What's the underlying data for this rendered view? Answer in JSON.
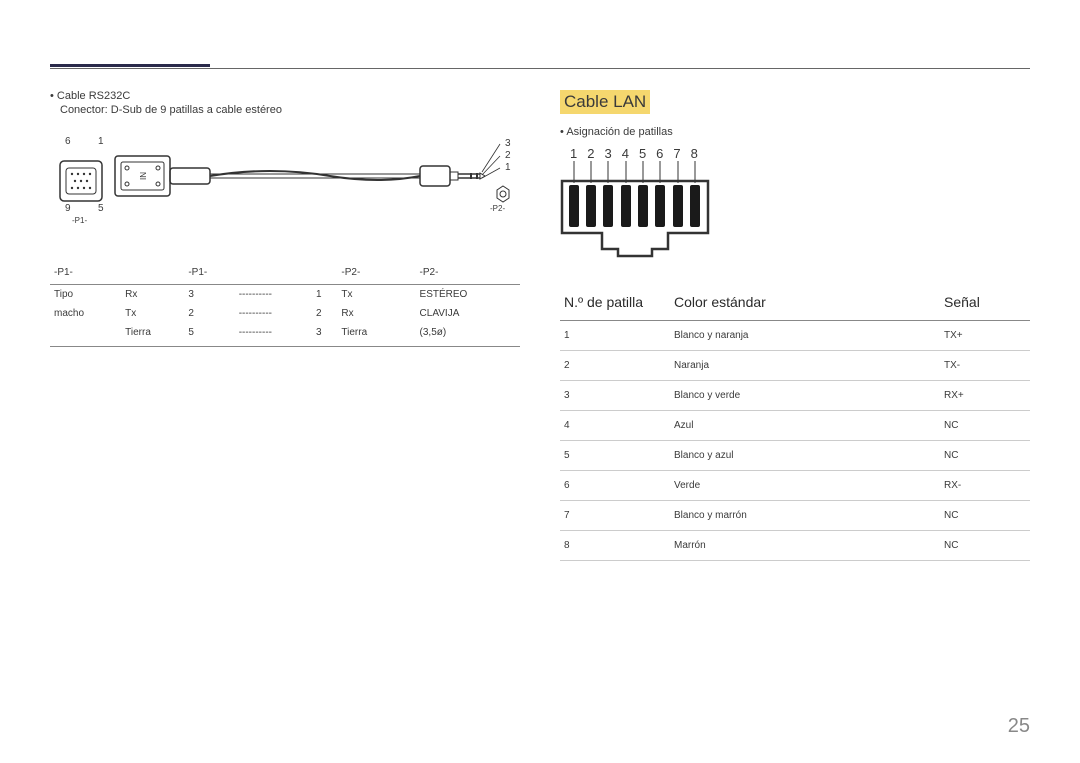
{
  "page_number": "25",
  "left": {
    "title": "Cable RS232C",
    "subtitle": "Conector: D-Sub de 9 patillas a cable estéreo",
    "diagram": {
      "p1_label": "-P1-",
      "p2_label": "-P2-",
      "dsub_pins_top": [
        "6",
        "1"
      ],
      "dsub_pins_bottom": [
        "9",
        "5"
      ],
      "jack_pins": [
        "3",
        "2",
        "1"
      ],
      "in_label": "IN"
    },
    "table": {
      "headers": [
        "-P1-",
        "",
        "-P1-",
        "",
        "",
        "-P2-",
        "",
        "-P2-"
      ],
      "rows": [
        [
          "Tipo",
          "Rx",
          "3",
          "----------",
          "1",
          "Tx",
          "ESTÉREO"
        ],
        [
          "macho",
          "Tx",
          "2",
          "----------",
          "2",
          "Rx",
          "CLAVIJA"
        ],
        [
          "",
          "Tierra",
          "5",
          "----------",
          "3",
          "Tierra",
          "(3,5ø)"
        ]
      ]
    }
  },
  "right": {
    "section_title": "Cable LAN",
    "bullet": "Asignación de patillas",
    "pin_numbers": [
      "1",
      "2",
      "3",
      "4",
      "5",
      "6",
      "7",
      "8"
    ],
    "table": {
      "headers": [
        "N.º de patilla",
        "Color estándar",
        "Señal"
      ],
      "rows": [
        [
          "1",
          "Blanco y naranja",
          "TX+"
        ],
        [
          "2",
          "Naranja",
          "TX-"
        ],
        [
          "3",
          "Blanco y verde",
          "RX+"
        ],
        [
          "4",
          "Azul",
          "NC"
        ],
        [
          "5",
          "Blanco y azul",
          "NC"
        ],
        [
          "6",
          "Verde",
          "RX-"
        ],
        [
          "7",
          "Blanco y marrón",
          "NC"
        ],
        [
          "8",
          "Marrón",
          "NC"
        ]
      ]
    }
  },
  "colors": {
    "highlight": "#f5d76e",
    "text": "#3a3a3a",
    "border": "#888888",
    "light_border": "#cccccc",
    "accent": "#2a2a4a"
  }
}
